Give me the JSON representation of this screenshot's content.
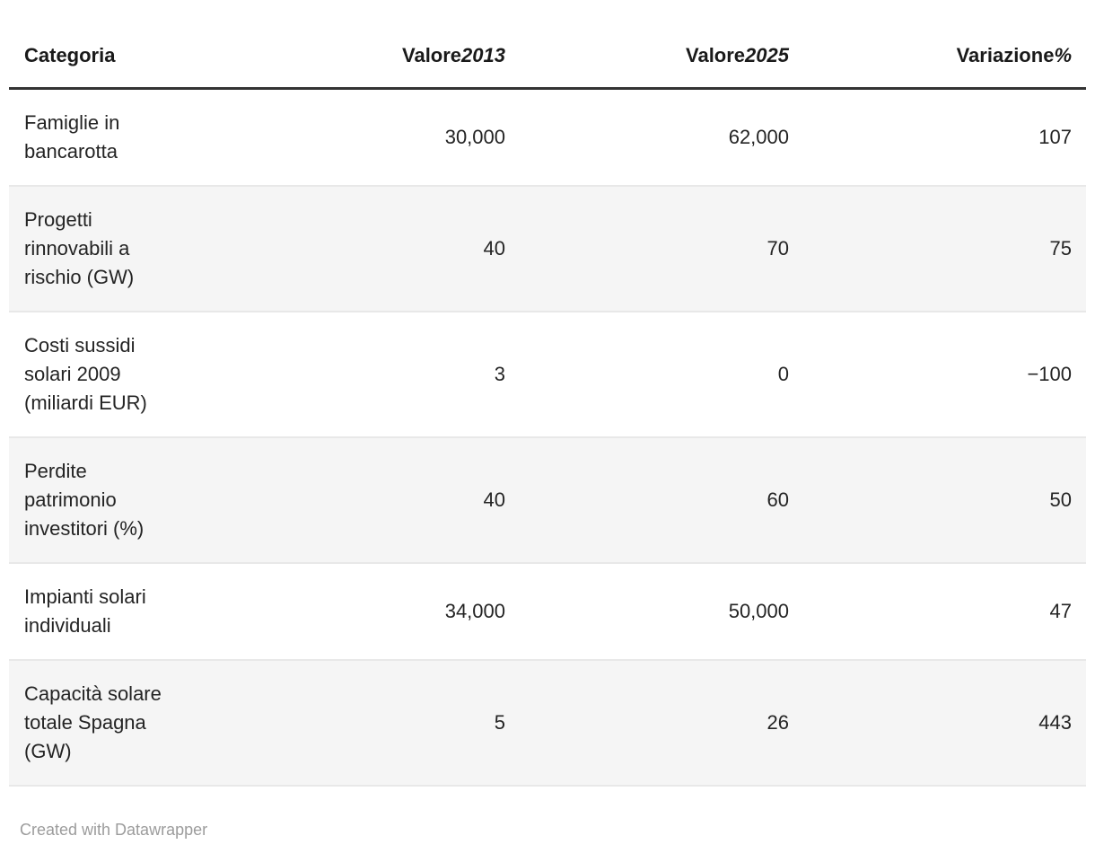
{
  "table": {
    "columns": [
      {
        "label": "Categoria",
        "unit": ""
      },
      {
        "label": "Valore",
        "unit": "2013"
      },
      {
        "label": "Valore",
        "unit": "2025"
      },
      {
        "label": "Variazione",
        "unit": "%"
      }
    ],
    "rows": [
      {
        "category": "Famiglie in bancarotta",
        "valore_2013": "30,000",
        "valore_2025": "62,000",
        "variazione": "107"
      },
      {
        "category": "Progetti rinnovabili a rischio (GW)",
        "valore_2013": "40",
        "valore_2025": "70",
        "variazione": "75"
      },
      {
        "category": "Costi sussidi solari 2009 (miliardi EUR)",
        "valore_2013": "3",
        "valore_2025": "0",
        "variazione": "−100"
      },
      {
        "category": "Perdite patrimonio investitori (%)",
        "valore_2013": "40",
        "valore_2025": "60",
        "variazione": "50"
      },
      {
        "category": "Impianti solari individuali",
        "valore_2013": "34,000",
        "valore_2025": "50,000",
        "variazione": "47"
      },
      {
        "category": "Capacità solare totale Spagna (GW)",
        "valore_2013": "5",
        "valore_2025": "26",
        "variazione": "443"
      }
    ]
  },
  "footer": {
    "credit": "Created with Datawrapper"
  },
  "colors": {
    "header_rule": "#333333",
    "row_rule": "#e8e8e8",
    "stripe_bg": "#f5f5f5",
    "text": "#1f1f1f",
    "credit_text": "#9c9c9c"
  },
  "chart_data": {
    "type": "table",
    "title": "",
    "columns": [
      "Categoria",
      "Valore 2013",
      "Valore 2025",
      "Variazione %"
    ],
    "rows": [
      [
        "Famiglie in bancarotta",
        30000,
        62000,
        107
      ],
      [
        "Progetti rinnovabili a rischio (GW)",
        40,
        70,
        75
      ],
      [
        "Costi sussidi solari 2009 (miliardi EUR)",
        3,
        0,
        -100
      ],
      [
        "Perdite patrimonio investitori (%)",
        40,
        60,
        50
      ],
      [
        "Impianti solari individuali",
        34000,
        50000,
        47
      ],
      [
        "Capacità solare totale Spagna (GW)",
        5,
        26,
        443
      ]
    ],
    "layout": {
      "striped_rows": true,
      "numeric_columns_right_aligned": true
    },
    "credit": "Created with Datawrapper"
  }
}
